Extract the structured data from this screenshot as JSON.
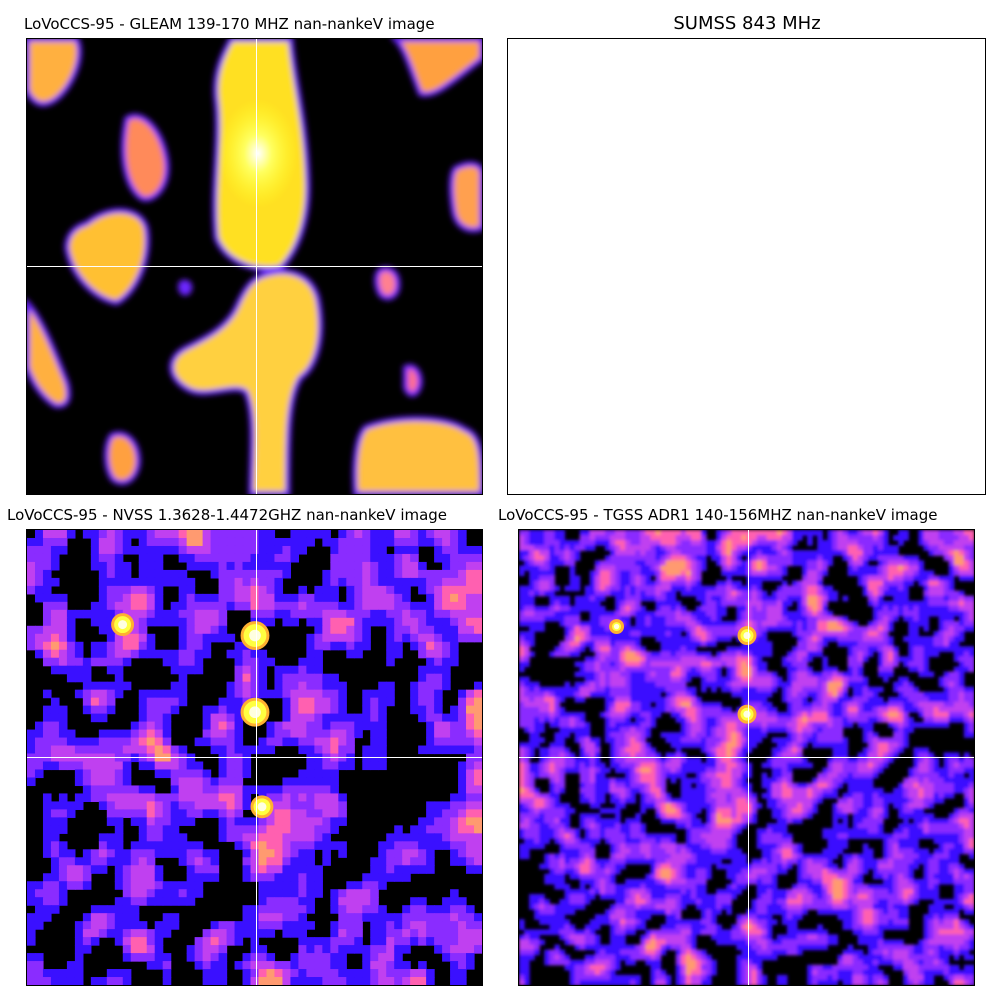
{
  "figure": {
    "panels": [
      {
        "title": "LoVoCCS-95 -  GLEAM 139-170 MHZ nan-nankeV image",
        "colormap": "gnuplot2",
        "has_data": true
      },
      {
        "title": "SUMSS 843 MHz",
        "colormap": "",
        "has_data": false
      },
      {
        "title": "LoVoCCS-95 -  NVSS 1.3628-1.4472GHZ nan-nankeV image",
        "colormap": "gnuplot2",
        "has_data": true
      },
      {
        "title": "LoVoCCS-95 -  TGSS ADR1 140-156MHZ nan-nankeV image",
        "colormap": "gnuplot2",
        "has_data": true
      }
    ],
    "crosshair_color": "#ffffff",
    "colors": {
      "background": "#000000",
      "low": "#4d00ff",
      "mid": "#ff55aa",
      "high": "#ffff20",
      "peak": "#ffffff"
    }
  }
}
